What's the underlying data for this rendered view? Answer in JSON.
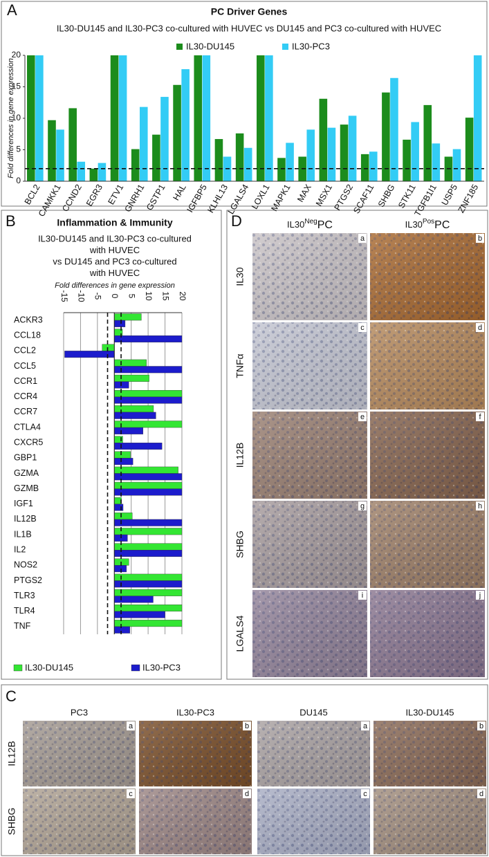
{
  "chart_data": [
    {
      "type": "bar",
      "panel": "A",
      "title": "PC Driver Genes",
      "subtitle": "IL30-DU145 and IL30-PC3 co-cultured with HUVEC vs DU145 and PC3 co-cultured with HUVEC",
      "y_label": "Fold differences in gene expression",
      "categories": [
        "BCL2",
        "CAMKK1",
        "CCND2",
        "EGR3",
        "ETV1",
        "GNRH1",
        "GSTP1",
        "HAL",
        "IGFBP5",
        "KLHL13",
        "LGALS4",
        "LOXL1",
        "MAPK1",
        "MAX",
        "MSX1",
        "PTGS2",
        "SCAF11",
        "SHBG",
        "STK11",
        "TGFB1I1",
        "USP5",
        "ZNF185"
      ],
      "series": [
        {
          "name": "IL30-DU145",
          "color": "#1c8c1c",
          "values": [
            20,
            9.7,
            11.6,
            2.0,
            20,
            5.1,
            7.4,
            15.3,
            20,
            6.7,
            7.6,
            20,
            3.7,
            3.9,
            13.1,
            9.0,
            4.3,
            14.1,
            6.6,
            12.1,
            3.9,
            10.1
          ]
        },
        {
          "name": "IL30-PC3",
          "color": "#33ccf5",
          "values": [
            20,
            8.2,
            3.1,
            2.9,
            20,
            11.8,
            13.4,
            17.8,
            20,
            3.9,
            5.3,
            20,
            6.1,
            8.2,
            8.5,
            10.4,
            4.7,
            16.4,
            9.4,
            6.0,
            5.1,
            20
          ]
        }
      ],
      "ylim": [
        0,
        20
      ],
      "yticks": [
        0,
        5,
        10,
        15,
        20
      ],
      "threshold": 2,
      "legend": "top",
      "grid": false
    },
    {
      "type": "hbar",
      "panel": "B",
      "title": "Inflammation & Immunity",
      "subtitle": [
        "IL30-DU145 and IL30-PC3 co-cultured",
        "with HUVEC",
        "vs DU145 and PC3 co-cultured",
        "with HUVEC"
      ],
      "x_label": "Fold differences in gene expression",
      "categories": [
        "ACKR3",
        "CCL18",
        "CCL2",
        "CCL5",
        "CCR1",
        "CCR4",
        "CCR7",
        "CTLA4",
        "CXCR5",
        "GBP1",
        "GZMA",
        "GZMB",
        "IGF1",
        "IL12B",
        "IL1B",
        "IL2",
        "NOS2",
        "PTGS2",
        "TLR3",
        "TLR4",
        "TNF"
      ],
      "series": [
        {
          "name": "IL30-DU145",
          "color": "#33e633",
          "values": [
            8,
            2.4,
            -3.6,
            9.5,
            10.3,
            20,
            11.6,
            20,
            2.5,
            4.8,
            18.9,
            20,
            2.1,
            5.3,
            20,
            20,
            4.3,
            20,
            20,
            20,
            20
          ]
        },
        {
          "name": "IL30-PC3",
          "color": "#1c1ccc",
          "values": [
            3.2,
            20,
            -14.7,
            20,
            4.3,
            20,
            12.3,
            8.5,
            14.1,
            5.5,
            20,
            20,
            2.6,
            20,
            3.9,
            20,
            3.6,
            20,
            11.5,
            15,
            4.6
          ]
        }
      ],
      "xlim": [
        -15,
        20
      ],
      "xticks": [
        -15,
        -10,
        -5,
        0,
        5,
        10,
        15,
        20
      ],
      "thresholds": [
        -2,
        2
      ],
      "legend": "bottom",
      "grid": true
    }
  ],
  "panel_d": {
    "panel": "D",
    "columns": [
      {
        "base": "IL30",
        "sup": "Neg",
        "suffix": "PC"
      },
      {
        "base": "IL30",
        "sup": "Pos",
        "suffix": "PC"
      }
    ],
    "rows": [
      "IL30",
      "TNFα",
      "IL12B",
      "SHBG",
      "LGALS4"
    ],
    "image_labels": [
      [
        "a",
        "b"
      ],
      [
        "c",
        "d"
      ],
      [
        "e",
        "f"
      ],
      [
        "g",
        "h"
      ],
      [
        "i",
        "j"
      ]
    ]
  },
  "panel_c": {
    "panel": "C",
    "columns": [
      "PC3",
      "IL30-PC3",
      "DU145",
      "IL30-DU145"
    ],
    "rows": [
      "IL12B",
      "SHBG"
    ],
    "image_labels": [
      [
        "a",
        "b",
        "a",
        "b"
      ],
      [
        "c",
        "d",
        "c",
        "d"
      ]
    ]
  }
}
